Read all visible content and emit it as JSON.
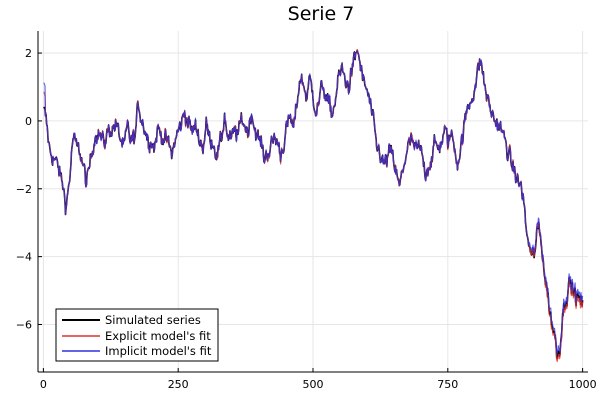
{
  "chart_data": {
    "type": "line",
    "title": "Serie 7",
    "xlabel": "",
    "ylabel": "",
    "xlim": [
      -10,
      1010
    ],
    "ylim": [
      -7.4,
      2.65
    ],
    "x_ticks": [
      0,
      250,
      500,
      750,
      1000
    ],
    "x_tick_labels": [
      "0",
      "250",
      "500",
      "750",
      "1000"
    ],
    "y_ticks": [
      -6,
      -4,
      -2,
      0,
      2
    ],
    "y_tick_labels": [
      "−6",
      "−4",
      "−2",
      "0",
      "2"
    ],
    "grid": true,
    "legend_position": "bottom-left",
    "x_range": [
      1,
      1000
    ],
    "anchors": [
      [
        1,
        0.3
      ],
      [
        5,
        0.0
      ],
      [
        12,
        -0.9
      ],
      [
        20,
        -1.1
      ],
      [
        28,
        -1.4
      ],
      [
        36,
        -1.9
      ],
      [
        42,
        -2.5
      ],
      [
        48,
        -1.8
      ],
      [
        55,
        -0.5
      ],
      [
        62,
        -0.8
      ],
      [
        68,
        -0.9
      ],
      [
        75,
        -1.4
      ],
      [
        80,
        -1.9
      ],
      [
        86,
        -1.3
      ],
      [
        92,
        -0.7
      ],
      [
        98,
        -0.3
      ],
      [
        105,
        -0.4
      ],
      [
        112,
        -0.7
      ],
      [
        120,
        -0.3
      ],
      [
        128,
        -0.2
      ],
      [
        135,
        -0.1
      ],
      [
        142,
        -0.5
      ],
      [
        150,
        -0.8
      ],
      [
        156,
        -0.2
      ],
      [
        162,
        -0.6
      ],
      [
        170,
        -0.5
      ],
      [
        176,
        0.5
      ],
      [
        182,
        0.1
      ],
      [
        188,
        -0.2
      ],
      [
        195,
        -0.6
      ],
      [
        200,
        -0.5
      ],
      [
        206,
        -0.8
      ],
      [
        212,
        -0.2
      ],
      [
        218,
        -0.4
      ],
      [
        225,
        -0.5
      ],
      [
        232,
        -0.7
      ],
      [
        238,
        -1.0
      ],
      [
        244,
        -0.6
      ],
      [
        250,
        -0.3
      ],
      [
        256,
        -0.1
      ],
      [
        262,
        0.3
      ],
      [
        268,
        0.0
      ],
      [
        275,
        -0.3
      ],
      [
        282,
        -0.2
      ],
      [
        290,
        -0.5
      ],
      [
        296,
        -0.8
      ],
      [
        302,
        -0.1
      ],
      [
        308,
        -0.5
      ],
      [
        315,
        -0.6
      ],
      [
        322,
        -1.0
      ],
      [
        330,
        -0.6
      ],
      [
        336,
        0.2
      ],
      [
        342,
        -0.5
      ],
      [
        348,
        -0.6
      ],
      [
        355,
        -0.3
      ],
      [
        362,
        -0.4
      ],
      [
        368,
        0.1
      ],
      [
        375,
        -0.2
      ],
      [
        380,
        -0.3
      ],
      [
        386,
        0.3
      ],
      [
        392,
        -0.2
      ],
      [
        398,
        -0.5
      ],
      [
        404,
        -0.7
      ],
      [
        410,
        -1.1
      ],
      [
        416,
        -0.9
      ],
      [
        422,
        -0.8
      ],
      [
        428,
        -0.5
      ],
      [
        434,
        -0.6
      ],
      [
        440,
        -1.0
      ],
      [
        446,
        -0.6
      ],
      [
        452,
        -0.2
      ],
      [
        458,
        0.1
      ],
      [
        464,
        -0.3
      ],
      [
        470,
        0.5
      ],
      [
        476,
        1.3
      ],
      [
        482,
        1.1
      ],
      [
        488,
        0.7
      ],
      [
        494,
        1.2
      ],
      [
        500,
        0.8
      ],
      [
        506,
        0.3
      ],
      [
        512,
        0.6
      ],
      [
        518,
        1.1
      ],
      [
        524,
        0.7
      ],
      [
        530,
        0.4
      ],
      [
        536,
        0.2
      ],
      [
        542,
        0.7
      ],
      [
        548,
        1.3
      ],
      [
        554,
        1.5
      ],
      [
        560,
        1.2
      ],
      [
        566,
        1.0
      ],
      [
        572,
        1.5
      ],
      [
        578,
        1.8
      ],
      [
        583,
        2.1
      ],
      [
        588,
        1.6
      ],
      [
        594,
        1.1
      ],
      [
        600,
        0.9
      ],
      [
        606,
        0.5
      ],
      [
        612,
        -0.1
      ],
      [
        618,
        -0.8
      ],
      [
        624,
        -0.9
      ],
      [
        630,
        -1.3
      ],
      [
        636,
        -1.2
      ],
      [
        642,
        -0.9
      ],
      [
        648,
        -1.1
      ],
      [
        654,
        -1.5
      ],
      [
        660,
        -2.0
      ],
      [
        666,
        -1.5
      ],
      [
        672,
        -1.0
      ],
      [
        678,
        -0.7
      ],
      [
        684,
        -0.6
      ],
      [
        690,
        -0.9
      ],
      [
        696,
        -0.8
      ],
      [
        702,
        -1.0
      ],
      [
        708,
        -1.5
      ],
      [
        714,
        -1.3
      ],
      [
        720,
        -1.1
      ],
      [
        726,
        -0.7
      ],
      [
        732,
        -0.8
      ],
      [
        738,
        -0.6
      ],
      [
        744,
        -0.3
      ],
      [
        750,
        -0.6
      ],
      [
        756,
        -0.4
      ],
      [
        762,
        -0.7
      ],
      [
        768,
        -1.2
      ],
      [
        774,
        -0.8
      ],
      [
        780,
        -0.2
      ],
      [
        786,
        0.3
      ],
      [
        792,
        0.6
      ],
      [
        798,
        0.9
      ],
      [
        804,
        1.3
      ],
      [
        810,
        1.8
      ],
      [
        815,
        1.4
      ],
      [
        820,
        0.9
      ],
      [
        826,
        0.5
      ],
      [
        832,
        0.2
      ],
      [
        838,
        0.0
      ],
      [
        844,
        -0.1
      ],
      [
        850,
        -0.3
      ],
      [
        856,
        -0.6
      ],
      [
        862,
        -0.9
      ],
      [
        868,
        -1.3
      ],
      [
        874,
        -1.5
      ],
      [
        880,
        -1.8
      ],
      [
        885,
        -1.9
      ],
      [
        890,
        -2.2
      ],
      [
        895,
        -3.2
      ],
      [
        900,
        -3.6
      ],
      [
        906,
        -4.1
      ],
      [
        912,
        -3.8
      ],
      [
        918,
        -3.1
      ],
      [
        924,
        -3.6
      ],
      [
        930,
        -4.6
      ],
      [
        936,
        -5.2
      ],
      [
        942,
        -5.9
      ],
      [
        948,
        -6.3
      ],
      [
        953,
        -6.9
      ],
      [
        958,
        -6.6
      ],
      [
        964,
        -5.6
      ],
      [
        970,
        -5.1
      ],
      [
        976,
        -4.8
      ],
      [
        982,
        -5.0
      ],
      [
        988,
        -5.2
      ],
      [
        994,
        -5.3
      ],
      [
        1000,
        -5.4
      ]
    ],
    "series": [
      {
        "name": "Simulated series",
        "color": "#000000"
      },
      {
        "name": "Explicit model's fit",
        "color": "#e03030"
      },
      {
        "name": "Implicit model's fit",
        "color": "#3030e0"
      }
    ]
  }
}
